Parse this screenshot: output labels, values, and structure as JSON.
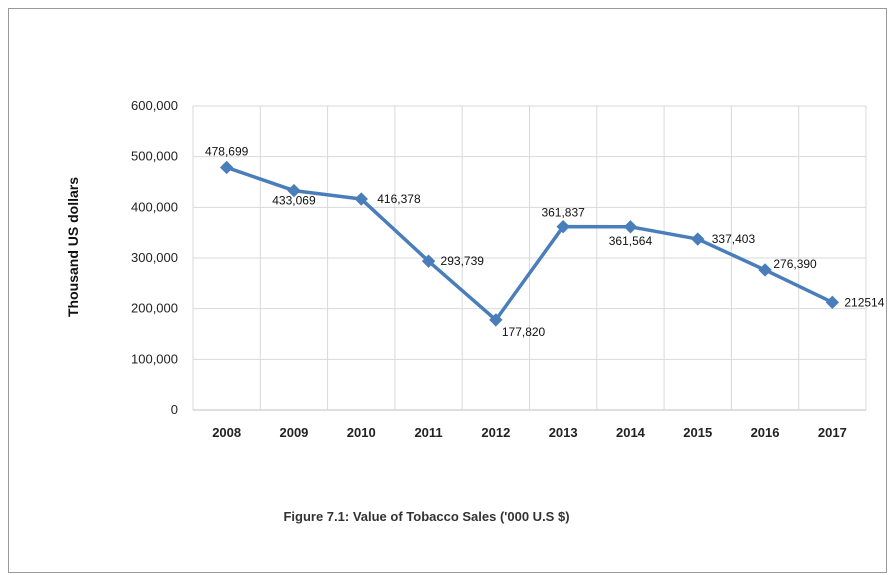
{
  "chart_data": {
    "type": "line",
    "title": "",
    "xlabel": "",
    "ylabel": "Thousand US dollars",
    "categories": [
      "2008",
      "2009",
      "2010",
      "2011",
      "2012",
      "2013",
      "2014",
      "2015",
      "2016",
      "2017"
    ],
    "series": [
      {
        "values": [
          478699,
          433069,
          416378,
          293739,
          177820,
          361837,
          361564,
          337403,
          276390,
          212514
        ],
        "labels": [
          "478,699",
          "433,069",
          "416,378",
          "293,739",
          "177,820",
          "361,837",
          "361,564",
          "337,403",
          "276,390",
          "212514"
        ]
      }
    ],
    "ylim": [
      0,
      600000
    ],
    "yticks": [
      "0",
      "100,000",
      "200,000",
      "300,000",
      "400,000",
      "500,000",
      "600,000"
    ],
    "grid": true,
    "line_color": "#4A7EBB",
    "grid_color": "#d9d9d9"
  },
  "caption": "Figure 7.1: Value of Tobacco Sales ('000 U.S $)"
}
